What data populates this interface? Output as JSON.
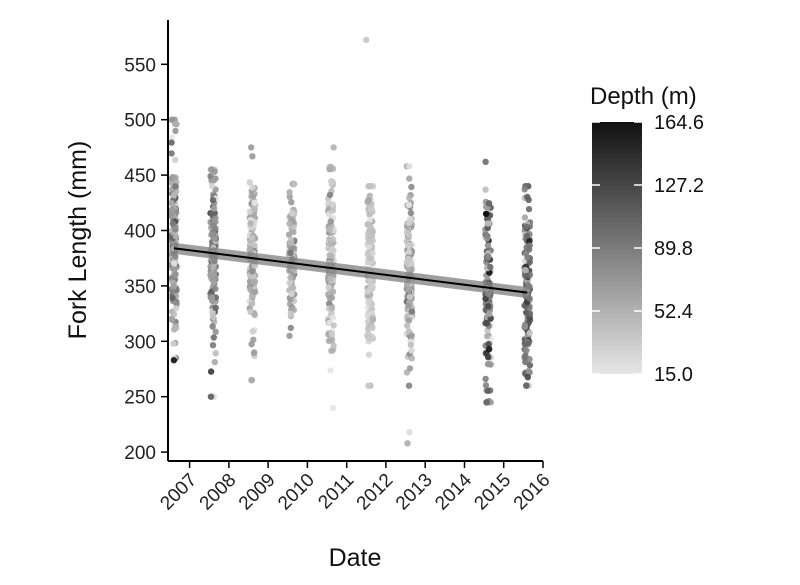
{
  "chart_data": {
    "type": "scatter",
    "title": "",
    "xlabel": "Date",
    "ylabel": "Fork Length (mm)",
    "x_ticks": [
      "2007",
      "2008",
      "2009",
      "2010",
      "2011",
      "2012",
      "2013",
      "2014",
      "2015",
      "2016"
    ],
    "y_ticks": [
      200,
      250,
      300,
      350,
      400,
      450,
      500,
      550
    ],
    "xlim": [
      2006.45,
      2016.0
    ],
    "ylim": [
      192,
      590
    ],
    "color_scale": {
      "title": "Depth (m)",
      "min": 15.0,
      "max": 164.6,
      "ticks": [
        "164.6",
        "127.2",
        "89.8",
        "52.4",
        "15.0"
      ],
      "low_color": "#e6e6e6",
      "high_color": "#111111"
    },
    "series": [
      {
        "x": 2006.6,
        "n": 150,
        "y_min": 285,
        "y_max": 500,
        "mean": 385,
        "sd": 42,
        "depth_mean": 70,
        "depth_sd": 25
      },
      {
        "x": 2007.6,
        "n": 150,
        "y_min": 250,
        "y_max": 455,
        "mean": 375,
        "sd": 40,
        "depth_mean": 80,
        "depth_sd": 25
      },
      {
        "x": 2008.6,
        "n": 150,
        "y_min": 265,
        "y_max": 475,
        "mean": 372,
        "sd": 40,
        "depth_mean": 50,
        "depth_sd": 18
      },
      {
        "x": 2009.6,
        "n": 90,
        "y_min": 305,
        "y_max": 442,
        "mean": 372,
        "sd": 35,
        "depth_mean": 60,
        "depth_sd": 20
      },
      {
        "x": 2010.6,
        "n": 150,
        "y_min": 240,
        "y_max": 475,
        "mean": 368,
        "sd": 42,
        "depth_mean": 45,
        "depth_sd": 18
      },
      {
        "x": 2011.6,
        "n": 140,
        "y_min": 260,
        "y_max": 440,
        "mean": 365,
        "sd": 38,
        "depth_mean": 35,
        "depth_sd": 12
      },
      {
        "x": 2012.6,
        "n": 150,
        "y_min": 260,
        "y_max": 458,
        "mean": 360,
        "sd": 42,
        "depth_mean": 50,
        "depth_sd": 18
      },
      {
        "x": 2014.6,
        "n": 130,
        "y_min": 245,
        "y_max": 462,
        "mean": 345,
        "sd": 42,
        "depth_mean": 80,
        "depth_sd": 30
      },
      {
        "x": 2015.6,
        "n": 130,
        "y_min": 260,
        "y_max": 440,
        "mean": 345,
        "sd": 40,
        "depth_mean": 90,
        "depth_sd": 30
      }
    ],
    "outliers": [
      {
        "x": 2011.5,
        "y": 572,
        "depth": 35
      },
      {
        "x": 2012.6,
        "y": 218,
        "depth": 20
      },
      {
        "x": 2012.55,
        "y": 208,
        "depth": 50
      },
      {
        "x": 2006.6,
        "y": 283,
        "depth": 150
      },
      {
        "x": 2014.55,
        "y": 415,
        "depth": 164.6
      }
    ],
    "trend_line": {
      "x": [
        2006.6,
        2015.6
      ],
      "y": [
        384,
        344
      ],
      "ci_halfwidth": 5,
      "color": "#000000",
      "band_color": "#7f7f7f"
    },
    "grid": false,
    "legend_position": "right"
  }
}
